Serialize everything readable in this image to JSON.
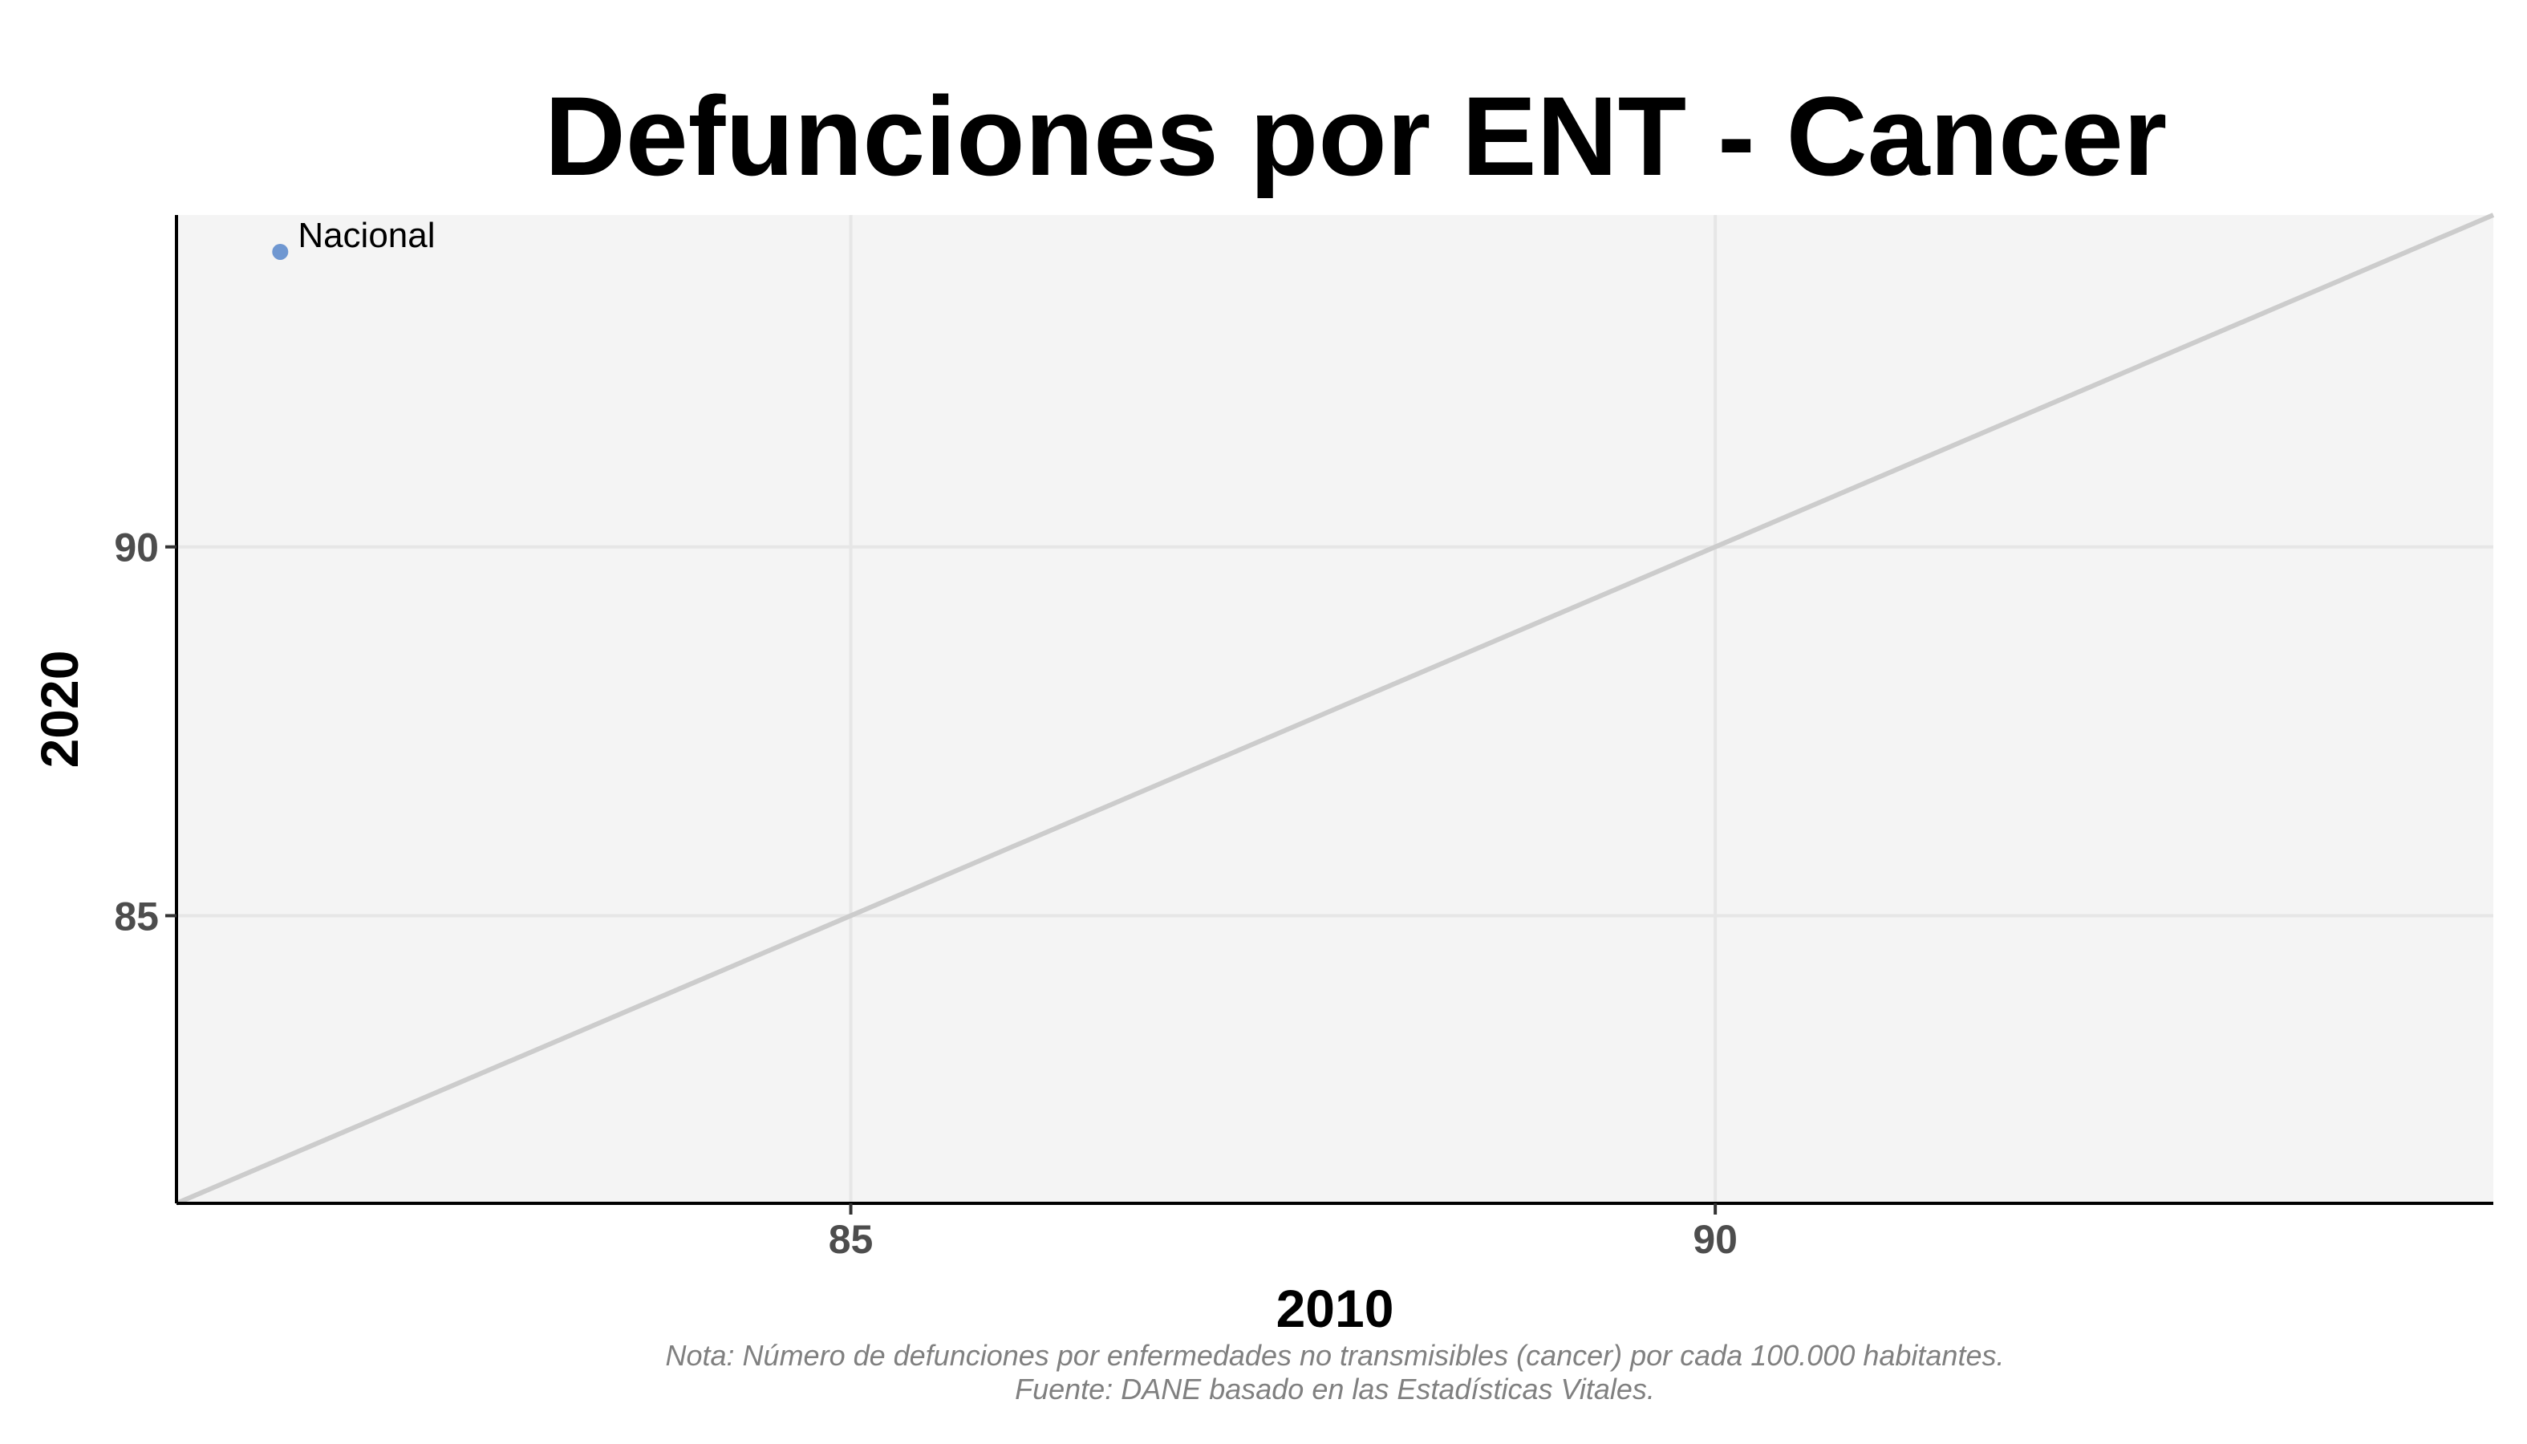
{
  "colors": {
    "panel_background": "#f4f4f4",
    "grid": "#e6e6e6",
    "reference_line": "#cccccc",
    "point": "#6f97d1",
    "axis": "#000000",
    "tick_text": "#4d4d4d",
    "caption_text": "#808080"
  },
  "chart_data": {
    "type": "scatter",
    "title": "Defunciones por ENT - Cancer",
    "xlabel": "2010",
    "ylabel": "2020",
    "xlim": [
      81.1,
      94.5
    ],
    "ylim": [
      81.1,
      94.5
    ],
    "x_ticks": [
      85,
      90
    ],
    "y_ticks": [
      85,
      90
    ],
    "x_tick_labels": [
      "85",
      "90"
    ],
    "y_tick_labels": [
      "85",
      "90"
    ],
    "grid": true,
    "reference_line": "y = x",
    "points": [
      {
        "label": "Nacional",
        "x": 81.7,
        "y": 94.0
      }
    ],
    "caption": [
      "Nota: Número de defunciones por enfermedades no transmisibles (cancer) por cada 100.000 habitantes.",
      "Fuente: DANE basado en las Estadísticas Vitales."
    ]
  }
}
